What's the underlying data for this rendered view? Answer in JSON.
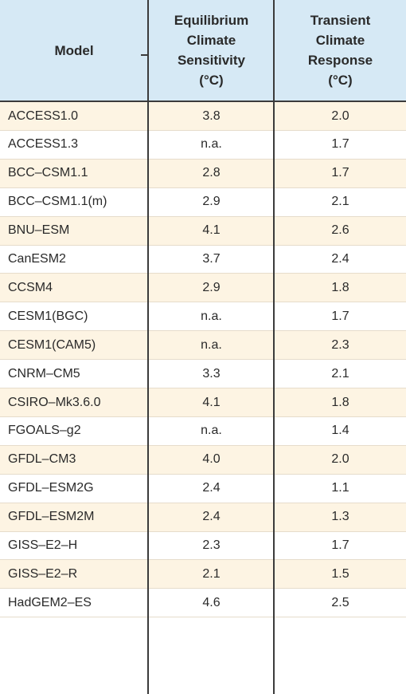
{
  "table": {
    "headers": {
      "model": "Model",
      "ecs": [
        "Equilibrium",
        "Climate",
        "Sensitivity",
        "(°C)"
      ],
      "tcr": [
        "Transient",
        "Climate",
        "Response",
        "(°C)"
      ]
    },
    "rows": [
      {
        "model": "ACCESS1.0",
        "ecs": "3.8",
        "tcr": "2.0"
      },
      {
        "model": "ACCESS1.3",
        "ecs": "n.a.",
        "tcr": "1.7"
      },
      {
        "model": "BCC–CSM1.1",
        "ecs": "2.8",
        "tcr": "1.7"
      },
      {
        "model": "BCC–CSM1.1(m)",
        "ecs": "2.9",
        "tcr": "2.1"
      },
      {
        "model": "BNU–ESM",
        "ecs": "4.1",
        "tcr": "2.6"
      },
      {
        "model": "CanESM2",
        "ecs": "3.7",
        "tcr": "2.4"
      },
      {
        "model": "CCSM4",
        "ecs": "2.9",
        "tcr": "1.8"
      },
      {
        "model": "CESM1(BGC)",
        "ecs": "n.a.",
        "tcr": "1.7"
      },
      {
        "model": "CESM1(CAM5)",
        "ecs": "n.a.",
        "tcr": "2.3"
      },
      {
        "model": "CNRM–CM5",
        "ecs": "3.3",
        "tcr": "2.1"
      },
      {
        "model": "CSIRO–Mk3.6.0",
        "ecs": "4.1",
        "tcr": "1.8"
      },
      {
        "model": "FGOALS–g2",
        "ecs": "n.a.",
        "tcr": "1.4"
      },
      {
        "model": "GFDL–CM3",
        "ecs": "4.0",
        "tcr": "2.0"
      },
      {
        "model": "GFDL–ESM2G",
        "ecs": "2.4",
        "tcr": "1.1"
      },
      {
        "model": "GFDL–ESM2M",
        "ecs": "2.4",
        "tcr": "1.3"
      },
      {
        "model": "GISS–E2–H",
        "ecs": "2.3",
        "tcr": "1.7"
      },
      {
        "model": "GISS–E2–R",
        "ecs": "2.1",
        "tcr": "1.5"
      },
      {
        "model": "HadGEM2–ES",
        "ecs": "4.6",
        "tcr": "2.5"
      }
    ]
  },
  "colors": {
    "header_bg": "#d6e9f5",
    "row_alt_bg": "#fdf4e3",
    "row_bg": "#ffffff",
    "rule": "#3b3b3b",
    "text": "#2a2a2a"
  }
}
